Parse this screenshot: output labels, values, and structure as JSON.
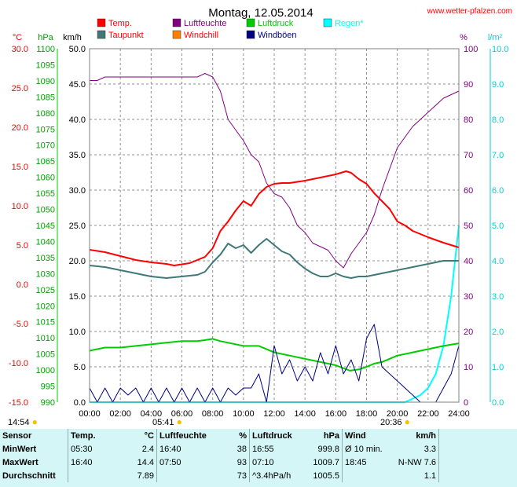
{
  "chart_data": {
    "type": "line",
    "title": "Montag, 12.05.2014",
    "source": "www.wetter-pfalzen.com",
    "x_ticks": [
      "00:00",
      "02:00",
      "04:00",
      "06:00",
      "08:00",
      "10:00",
      "12:00",
      "14:00",
      "16:00",
      "18:00",
      "20:00",
      "22:00",
      "24:00"
    ],
    "xlim": [
      0,
      24
    ],
    "axes": {
      "temp": {
        "label": "°C",
        "ylim": [
          -15,
          30
        ],
        "ticks": [
          "30.0",
          "25.0",
          "20.0",
          "15.0",
          "10.0",
          "5.0",
          "0.0",
          "-5.0",
          "-10.0",
          "-15.0"
        ],
        "color": "#ff0000"
      },
      "pressure": {
        "label": "hPa",
        "ylim": [
          990,
          1100
        ],
        "ticks": [
          "1100",
          "1095",
          "1090",
          "1085",
          "1080",
          "1075",
          "1070",
          "1065",
          "1060",
          "1055",
          "1050",
          "1045",
          "1040",
          "1035",
          "1030",
          "1025",
          "1020",
          "1015",
          "1010",
          "1005",
          "1000",
          "995",
          "990"
        ],
        "color": "#00a000"
      },
      "wind": {
        "label": "km/h",
        "ylim": [
          0,
          50
        ],
        "ticks": [
          "50.0",
          "45.0",
          "40.0",
          "35.0",
          "30.0",
          "25.0",
          "20.0",
          "15.0",
          "10.0",
          "5.0",
          "0.0"
        ],
        "color": "#000000"
      },
      "humidity": {
        "label": "%",
        "ylim": [
          0,
          100
        ],
        "ticks": [
          "100",
          "90",
          "80",
          "70",
          "60",
          "50",
          "40",
          "30",
          "20",
          "10",
          "0"
        ],
        "color": "#800080"
      },
      "rain": {
        "label": "l/m²",
        "ylim": [
          0,
          10
        ],
        "ticks": [
          "10.0",
          "9.0",
          "8.0",
          "7.0",
          "6.0",
          "5.0",
          "4.0",
          "3.0",
          "2.0",
          "1.0",
          "0.0"
        ],
        "color": "#00d0d0"
      }
    },
    "legend": [
      {
        "name": "Temp.",
        "color": "#ff0000"
      },
      {
        "name": "Luftfeuchte",
        "color": "#800080"
      },
      {
        "name": "Luftdruck",
        "color": "#00cc00"
      },
      {
        "name": "Regen*",
        "color": "#00ffff"
      },
      {
        "name": "Taupunkt",
        "color": "#407878"
      },
      {
        "name": "Windchill",
        "color": "#ff8000"
      },
      {
        "name": "Windböen",
        "color": "#000080"
      }
    ],
    "series": [
      {
        "name": "Temp.",
        "axis": "temp",
        "color": "#ff0000",
        "x": [
          0,
          1,
          2,
          3,
          4,
          5,
          5.5,
          6.5,
          7.5,
          8,
          8.5,
          9,
          9.5,
          10,
          10.5,
          11,
          11.5,
          12,
          12.5,
          13,
          14,
          15,
          16,
          16.67,
          17,
          17.5,
          18,
          18.5,
          19,
          19.5,
          20,
          20.5,
          21,
          22,
          23,
          24
        ],
        "y": [
          4.4,
          4.1,
          3.6,
          3.1,
          2.8,
          2.6,
          2.4,
          2.7,
          3.5,
          4.6,
          6.8,
          8.0,
          9.4,
          10.6,
          10.0,
          11.5,
          12.4,
          12.8,
          12.9,
          12.9,
          13.2,
          13.6,
          14.0,
          14.4,
          14.2,
          13.4,
          12.8,
          11.6,
          10.6,
          9.6,
          8.0,
          7.5,
          6.8,
          6.0,
          5.3,
          4.7
        ]
      },
      {
        "name": "Taupunkt",
        "axis": "temp",
        "color": "#407878",
        "x": [
          0,
          1,
          2,
          3,
          4,
          5,
          6,
          7,
          7.5,
          8,
          8.5,
          9,
          9.5,
          10,
          10.5,
          11,
          11.5,
          12,
          12.5,
          13,
          13.5,
          14,
          14.5,
          15,
          15.5,
          16,
          16.5,
          17,
          17.5,
          18,
          19,
          20,
          21,
          22,
          23,
          24
        ],
        "y": [
          2.4,
          2.2,
          1.8,
          1.4,
          1.0,
          0.8,
          1.0,
          1.2,
          1.6,
          2.8,
          3.8,
          5.2,
          4.6,
          5.0,
          4.0,
          5.0,
          5.8,
          5.0,
          4.2,
          3.8,
          2.8,
          2.0,
          1.4,
          1.0,
          1.0,
          1.4,
          1.0,
          0.8,
          1.0,
          1.0,
          1.4,
          1.8,
          2.2,
          2.6,
          3.0,
          3.0
        ]
      },
      {
        "name": "Luftfeuchte",
        "axis": "humidity",
        "color": "#800080",
        "x": [
          0,
          0.5,
          1,
          2,
          3,
          4,
          5,
          6,
          7,
          7.5,
          8,
          8.5,
          9,
          9.5,
          10,
          10.5,
          11,
          11.5,
          12,
          12.5,
          13,
          13.5,
          14,
          14.5,
          15,
          15.5,
          16,
          16.5,
          17,
          17.5,
          18,
          18.5,
          19,
          19.5,
          20,
          20.5,
          21,
          22,
          23,
          24
        ],
        "y": [
          91,
          91,
          92,
          92,
          92,
          92,
          92,
          92,
          92,
          93,
          92,
          88,
          80,
          77,
          74,
          70,
          68,
          62,
          59,
          58,
          55,
          50,
          48,
          45,
          44,
          43,
          40,
          38,
          42,
          45,
          48,
          53,
          60,
          66,
          72,
          75,
          78,
          82,
          86,
          88
        ]
      },
      {
        "name": "Luftdruck",
        "axis": "pressure",
        "color": "#00cc00",
        "x": [
          0,
          1,
          2,
          3,
          4,
          5,
          6,
          7,
          7.5,
          8,
          8.5,
          9,
          10,
          11,
          12,
          13,
          14,
          15,
          16,
          16.92,
          17.5,
          18,
          18.5,
          19,
          19.5,
          20,
          21,
          22,
          23,
          24
        ],
        "y": [
          1006,
          1007,
          1007,
          1007.5,
          1008,
          1008.5,
          1009,
          1009,
          1009.3,
          1009.7,
          1009,
          1008.5,
          1007.5,
          1007.5,
          1005.5,
          1004.5,
          1003.5,
          1002.5,
          1001.5,
          999.8,
          1000.2,
          1001,
          1002,
          1002.5,
          1003.5,
          1004.5,
          1005.5,
          1006.5,
          1007.5,
          1008.3
        ]
      },
      {
        "name": "Windböen",
        "axis": "wind",
        "color": "#000080",
        "x": [
          0,
          0.5,
          1,
          1.5,
          2,
          2.5,
          3,
          3.5,
          4,
          4.5,
          5,
          5.5,
          6,
          6.5,
          7,
          7.5,
          8,
          8.5,
          9,
          9.5,
          10,
          10.5,
          11,
          11.5,
          12,
          12.5,
          13,
          13.5,
          14,
          14.5,
          15,
          15.5,
          16,
          16.5,
          17,
          17.5,
          18,
          18.5,
          19,
          19.5,
          20,
          20.5,
          21,
          21.5,
          22,
          22.5,
          23,
          23.5,
          24
        ],
        "y": [
          2,
          0,
          2,
          0,
          2,
          1,
          2,
          0,
          2,
          0,
          2,
          0,
          2,
          0,
          2,
          0,
          2,
          0,
          2,
          1,
          2,
          2,
          4,
          0,
          8,
          4,
          6,
          3,
          5,
          3,
          7,
          4,
          8,
          4,
          6,
          3,
          9,
          11,
          5,
          4,
          3,
          2,
          1,
          0,
          0,
          0,
          2,
          4,
          8
        ]
      },
      {
        "name": "Regen*",
        "axis": "rain",
        "color": "#00ffff",
        "x": [
          0,
          20.5,
          21,
          21.5,
          22,
          22.5,
          23,
          23.5,
          24
        ],
        "y": [
          0,
          0,
          0.1,
          0.2,
          0.4,
          0.8,
          1.6,
          3.0,
          5.0
        ]
      }
    ]
  },
  "sun": {
    "sunrise": "05:41",
    "sunset": "20:36",
    "left_time": "14:54"
  },
  "stats": {
    "headers": {
      "sensor": "Sensor",
      "temp": "Temp.",
      "temp_unit": "°C",
      "hum": "Luftfeuchte",
      "hum_unit": "%",
      "pres": "Luftdruck",
      "pres_unit": "hPa",
      "wind": "Wind",
      "wind_unit": "km/h"
    },
    "rows": [
      {
        "label": "MinWert",
        "temp_time": "05:30",
        "temp_val": "2.4",
        "hum_time": "16:40",
        "hum_val": "38",
        "pres_time": "16:55",
        "pres_val": "999.8",
        "wind_time": "Ø 10 min.",
        "wind_val": "3.3"
      },
      {
        "label": "MaxWert",
        "temp_time": "16:40",
        "temp_val": "14.4",
        "hum_time": "07:50",
        "hum_val": "93",
        "pres_time": "07:10",
        "pres_val": "1009.7",
        "wind_time": "18:45",
        "wind_val": "N-NW 7.6"
      },
      {
        "label": "Durchschnitt",
        "temp_time": "",
        "temp_val": "7.89",
        "hum_time": "",
        "hum_val": "73",
        "pres_time": "^3.4hPa/h",
        "pres_val": "1005.5",
        "wind_time": "",
        "wind_val": "1.1"
      }
    ]
  }
}
